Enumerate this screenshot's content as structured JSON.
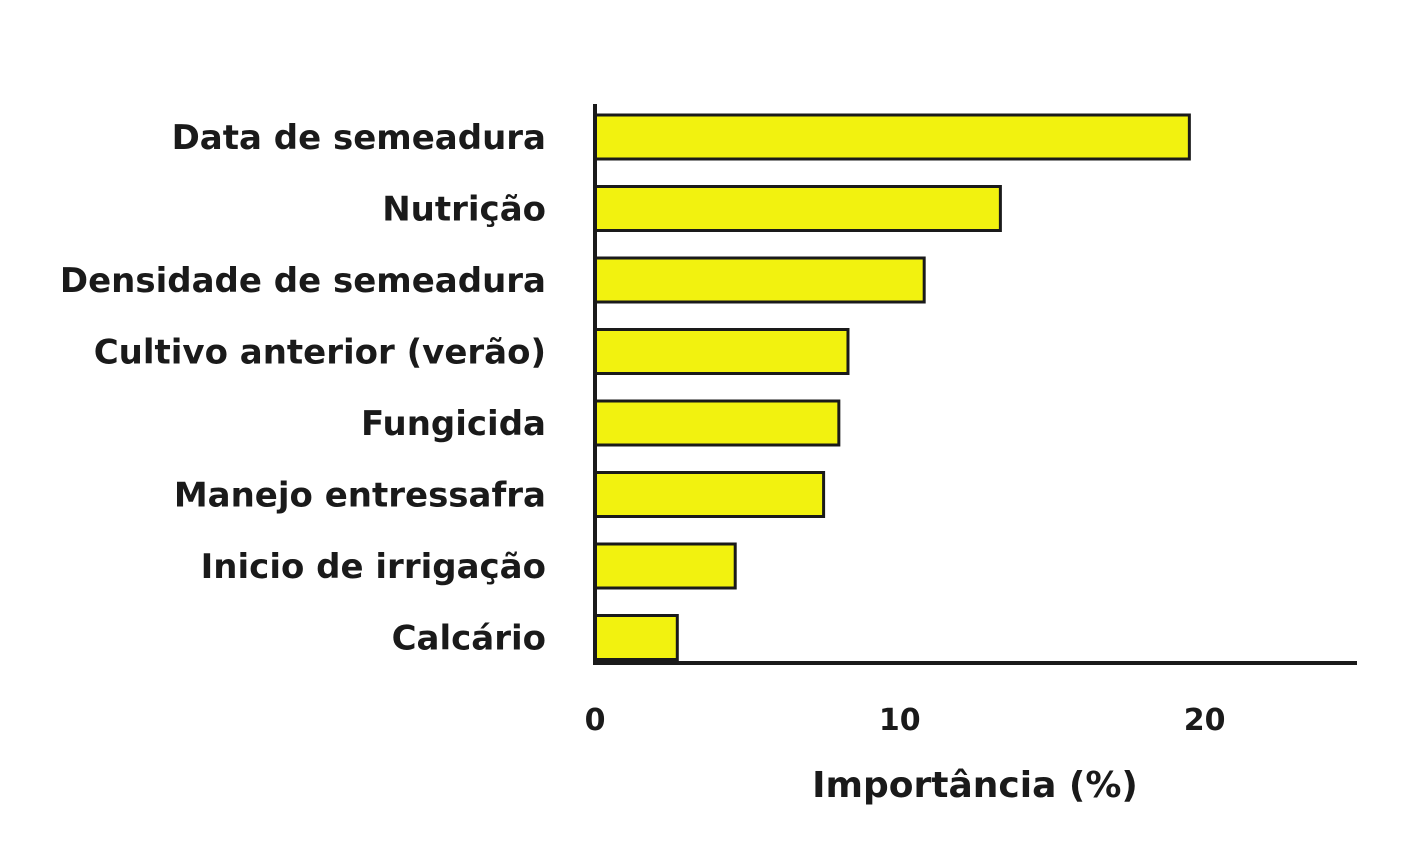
{
  "chart_data": {
    "type": "bar",
    "orientation": "horizontal",
    "categories": [
      "Data de semeadura",
      "Nutrição",
      "Densidade de semeadura",
      "Cultivo anterior (verão)",
      "Fungicida",
      "Manejo entressafra",
      "Inicio de irrigação",
      "Calcário"
    ],
    "values": [
      19.5,
      13.3,
      10.8,
      8.3,
      8.0,
      7.5,
      4.6,
      2.7
    ],
    "xlabel": "Importância (%)",
    "xlim": [
      0,
      25
    ],
    "xticks": [
      0,
      10,
      20
    ],
    "grid": false,
    "legend": "none",
    "colors": {
      "bar_fill": "#f2f20f",
      "bar_stroke": "#1a1a1a",
      "axis": "#1a1a1a",
      "text": "#1a1a1a"
    }
  }
}
